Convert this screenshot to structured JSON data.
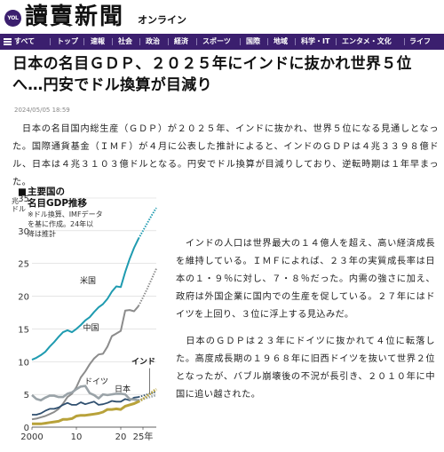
{
  "header": {
    "badge": "YOL",
    "logo": "讀賣新聞",
    "logo_sub": "オンライン"
  },
  "nav": {
    "items": [
      "すべて",
      "トップ",
      "速報",
      "社会",
      "政治",
      "経済",
      "スポーツ",
      "国際",
      "地域",
      "科学・IT",
      "エンタメ・文化",
      "ライフ"
    ],
    "menu_icon": "hamburger-icon"
  },
  "article": {
    "title": "日本の名目ＧＤＰ、２０２５年にインドに抜かれ世界５位へ…円安でドル換算が目減り",
    "date": "2024/05/05 18:59",
    "paragraphs": [
      "　日本の名目国内総生産（ＧＤＰ）が２０２５年、インドに抜かれ、世界５位になる見通しとなった。国際通貨基金（ＩＭＦ）が４月に公表した推計によると、インドのＧＤＰは４兆３３９８億ドル、日本は４兆３１０３億ドルとなる。円安でドル換算が目減りしており、逆転時期は１年早まった。",
      "　インドの人口は世界最大の１４億人を超え、高い経済成長を維持している。ＩＭＦによれば、２３年の実質成長率は日本の１・９％に対し、７・８％だった。内需の強さに加え、政府は外国企業に国内での生産を促している。２７年にはドイツを上回り、３位に浮上する見込みだ。",
      "　日本のＧＤＰは２３年にドイツに抜かれて４位に転落した。高度成長期の１９６８年に旧西ドイツを抜いて世界２位となったが、バブル崩壊後の不況が長引き、２０１０年に中国に追い越された。"
    ]
  },
  "chart_data": {
    "type": "line",
    "title": "主要国の名目GDP推移",
    "note": "※ドル換算、IMFデータを基に作成。24年以降は推計",
    "ylabel": "兆ドル",
    "y_ticks": [
      "35",
      "30",
      "25",
      "20",
      "15",
      "10",
      "5",
      "0"
    ],
    "x_ticks": [
      "2000",
      "10",
      "20",
      "25年"
    ],
    "xlim": [
      2000,
      2028
    ],
    "ylim": [
      0,
      35
    ],
    "estimate_from": 2024,
    "series": [
      {
        "name": "米国",
        "color": "#1f9bb0",
        "x": [
          2000,
          2001,
          2002,
          2003,
          2004,
          2005,
          2006,
          2007,
          2008,
          2009,
          2010,
          2011,
          2012,
          2013,
          2014,
          2015,
          2016,
          2017,
          2018,
          2019,
          2020,
          2021,
          2022,
          2023,
          2024,
          2025,
          2026,
          2027,
          2028
        ],
        "values": [
          10.3,
          10.6,
          11.0,
          11.5,
          12.3,
          13.0,
          13.8,
          14.5,
          14.8,
          14.5,
          15.0,
          15.6,
          16.3,
          16.8,
          17.6,
          18.3,
          18.8,
          19.6,
          20.7,
          21.5,
          21.4,
          23.7,
          25.7,
          27.4,
          28.8,
          30.0,
          31.2,
          32.4,
          33.5
        ]
      },
      {
        "name": "中国",
        "color": "#8c8c8c",
        "x": [
          2000,
          2001,
          2002,
          2003,
          2004,
          2005,
          2006,
          2007,
          2008,
          2009,
          2010,
          2011,
          2012,
          2013,
          2014,
          2015,
          2016,
          2017,
          2018,
          2019,
          2020,
          2021,
          2022,
          2023,
          2024,
          2025,
          2026,
          2027,
          2028
        ],
        "values": [
          1.2,
          1.3,
          1.5,
          1.7,
          2.0,
          2.3,
          2.8,
          3.6,
          4.6,
          5.1,
          6.1,
          7.6,
          8.5,
          9.6,
          10.5,
          11.1,
          11.2,
          12.3,
          13.9,
          14.3,
          14.7,
          17.8,
          17.9,
          17.7,
          18.5,
          19.8,
          21.2,
          22.7,
          24.2
        ]
      },
      {
        "name": "ドイツ",
        "color": "#2f4f6f",
        "x": [
          2000,
          2001,
          2002,
          2003,
          2004,
          2005,
          2006,
          2007,
          2008,
          2009,
          2010,
          2011,
          2012,
          2013,
          2014,
          2015,
          2016,
          2017,
          2018,
          2019,
          2020,
          2021,
          2022,
          2023,
          2024,
          2025,
          2026,
          2027,
          2028
        ],
        "values": [
          1.9,
          1.9,
          2.1,
          2.5,
          2.8,
          2.8,
          3.0,
          3.4,
          3.7,
          3.4,
          3.4,
          3.8,
          3.5,
          3.7,
          3.9,
          3.4,
          3.5,
          3.7,
          4.0,
          3.9,
          3.9,
          4.3,
          4.1,
          4.5,
          4.6,
          4.8,
          5.0,
          5.2,
          5.4
        ]
      },
      {
        "name": "日本",
        "color": "#9aa3a8",
        "x": [
          2000,
          2001,
          2002,
          2003,
          2004,
          2005,
          2006,
          2007,
          2008,
          2009,
          2010,
          2011,
          2012,
          2013,
          2014,
          2015,
          2016,
          2017,
          2018,
          2019,
          2020,
          2021,
          2022,
          2023,
          2024,
          2025,
          2026,
          2027,
          2028
        ],
        "values": [
          4.9,
          4.3,
          4.1,
          4.5,
          4.8,
          4.8,
          4.6,
          4.6,
          5.1,
          5.3,
          5.8,
          6.2,
          6.3,
          5.2,
          4.9,
          4.4,
          5.0,
          4.9,
          5.0,
          5.1,
          5.1,
          5.0,
          4.3,
          4.2,
          4.1,
          4.3,
          4.5,
          4.7,
          4.9
        ]
      },
      {
        "name": "インド",
        "color": "#b8a23a",
        "x": [
          2000,
          2001,
          2002,
          2003,
          2004,
          2005,
          2006,
          2007,
          2008,
          2009,
          2010,
          2011,
          2012,
          2013,
          2014,
          2015,
          2016,
          2017,
          2018,
          2019,
          2020,
          2021,
          2022,
          2023,
          2024,
          2025,
          2026,
          2027,
          2028
        ],
        "values": [
          0.5,
          0.5,
          0.5,
          0.6,
          0.7,
          0.8,
          0.9,
          1.2,
          1.2,
          1.3,
          1.7,
          1.8,
          1.8,
          1.9,
          2.0,
          2.1,
          2.3,
          2.7,
          2.7,
          2.8,
          2.7,
          3.2,
          3.4,
          3.6,
          3.9,
          4.3,
          4.8,
          5.3,
          5.8
        ]
      }
    ]
  }
}
